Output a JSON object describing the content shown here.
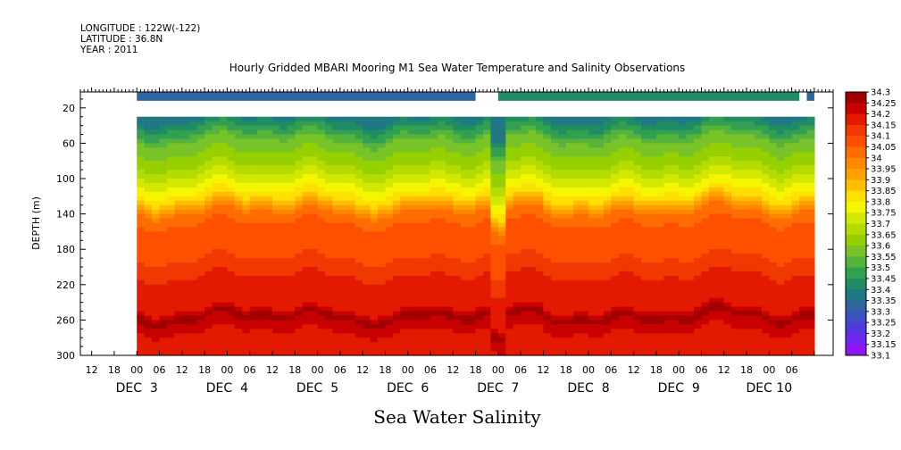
{
  "header": {
    "longitude": "LONGITUDE : 122W(-122)",
    "latitude": "LATITUDE : 36.8N",
    "year": "YEAR : 2011"
  },
  "chart_data": {
    "type": "heatmap",
    "title": "Hourly Gridded MBARI Mooring M1 Sea Water Temperature and Salinity Observations",
    "ylabel": "DEPTH (m)",
    "variable_label": "Sea Water Salinity",
    "x_hour_ticks": [
      "12",
      "18",
      "00",
      "06",
      "12",
      "18",
      "00",
      "06",
      "12",
      "18",
      "00",
      "06",
      "12",
      "18",
      "00",
      "06",
      "12",
      "18",
      "00",
      "06",
      "12",
      "18",
      "00",
      "06",
      "12",
      "18",
      "00",
      "06",
      "12",
      "18",
      "00",
      "06"
    ],
    "x_day_labels": [
      {
        "text": "DEC  3",
        "hour": 0
      },
      {
        "text": "DEC  4",
        "hour": 24
      },
      {
        "text": "DEC  5",
        "hour": 48
      },
      {
        "text": "DEC  6",
        "hour": 72
      },
      {
        "text": "DEC  7",
        "hour": 96
      },
      {
        "text": "DEC  8",
        "hour": 120
      },
      {
        "text": "DEC  9",
        "hour": 144
      },
      {
        "text": "DEC 10",
        "hour": 168
      }
    ],
    "x_range_hours": [
      -15,
      185
    ],
    "data_start_hour": 0,
    "data_end_hour": 180,
    "y_ticks": [
      20,
      60,
      100,
      140,
      180,
      220,
      260,
      300
    ],
    "ylim": [
      300,
      2
    ],
    "y_inverted": true,
    "colorbar_levels": [
      "34.3",
      "34.25",
      "34.2",
      "34.15",
      "34.1",
      "34.05",
      "34",
      "33.95",
      "33.9",
      "33.85",
      "33.8",
      "33.75",
      "33.7",
      "33.65",
      "33.6",
      "33.55",
      "33.5",
      "33.45",
      "33.4",
      "33.35",
      "33.3",
      "33.25",
      "33.2",
      "33.15",
      "33.1"
    ],
    "colorbar_colors": [
      "#a00000",
      "#c80000",
      "#e41a00",
      "#f03800",
      "#ff5000",
      "#ff6c00",
      "#ff8800",
      "#ffa000",
      "#ffbf00",
      "#ffe000",
      "#f5f500",
      "#d2e800",
      "#b4dc00",
      "#96d000",
      "#78c428",
      "#56b43c",
      "#32a050",
      "#208c64",
      "#207882",
      "#2e64a0",
      "#3c50c0",
      "#5038dc",
      "#7028f0",
      "#9014f5",
      "#c000ff"
    ],
    "surface_band": [
      {
        "from_hour": 0,
        "to_hour": 90,
        "value": 33.35
      },
      {
        "from_hour": 96,
        "to_hour": 176,
        "value": 33.45
      },
      {
        "from_hour": 178,
        "to_hour": 180,
        "value": 33.35
      }
    ],
    "surface_band_depth": [
      2,
      12
    ],
    "gap_depth": [
      12,
      30
    ],
    "profile": [
      {
        "depth": 30,
        "value": 33.4
      },
      {
        "depth": 45,
        "value": 33.5
      },
      {
        "depth": 60,
        "value": 33.6
      },
      {
        "depth": 80,
        "value": 33.65
      },
      {
        "depth": 100,
        "value": 33.75
      },
      {
        "depth": 120,
        "value": 33.85
      },
      {
        "depth": 140,
        "value": 34.05
      },
      {
        "depth": 160,
        "value": 34.1
      },
      {
        "depth": 180,
        "value": 34.1
      },
      {
        "depth": 200,
        "value": 34.15
      },
      {
        "depth": 220,
        "value": 34.2
      },
      {
        "depth": 245,
        "value": 34.2
      },
      {
        "depth": 255,
        "value": 34.3
      },
      {
        "depth": 265,
        "value": 34.25
      },
      {
        "depth": 280,
        "value": 34.2
      },
      {
        "depth": 300,
        "value": 34.2
      }
    ]
  }
}
